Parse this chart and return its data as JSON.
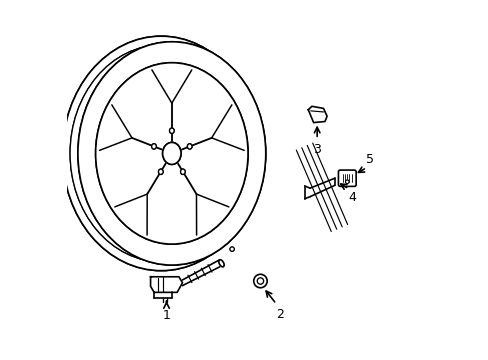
{
  "background_color": "#ffffff",
  "line_color": "#000000",
  "line_width": 1.2,
  "fig_width": 4.89,
  "fig_height": 3.6,
  "dpi": 100,
  "label_fontsize": 9
}
